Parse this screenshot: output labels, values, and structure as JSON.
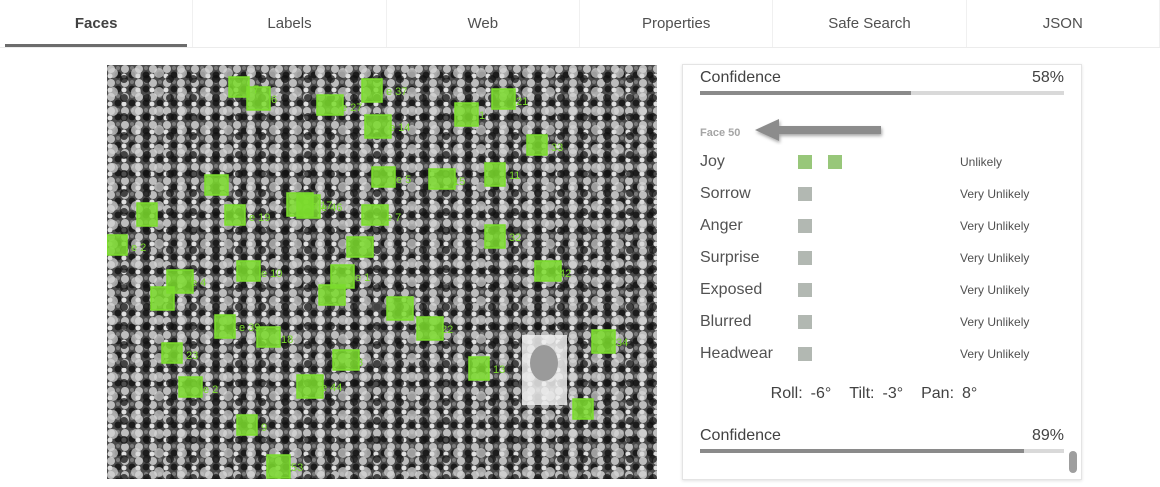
{
  "tabs": [
    {
      "label": "Faces",
      "active": true
    },
    {
      "label": "Labels",
      "active": false
    },
    {
      "label": "Web",
      "active": false
    },
    {
      "label": "Properties",
      "active": false
    },
    {
      "label": "Safe Search",
      "active": false
    },
    {
      "label": "JSON",
      "active": false
    }
  ],
  "image": {
    "face_labels": [
      "7",
      "6",
      "e 27",
      "e 37",
      "21",
      "e 14",
      "33",
      "1",
      "15",
      "11",
      "e 5",
      "e 17",
      "e 19",
      "e 46",
      "e 7",
      "32",
      "e 10",
      "e 4",
      "e 2",
      "e 1",
      "42",
      "e 39",
      "18",
      "22",
      "23",
      "34",
      "3",
      "13",
      "e 2",
      "e 44",
      "9",
      "53"
    ]
  },
  "panel": {
    "top_confidence": {
      "label": "Confidence",
      "value": "58%",
      "fraction": 0.58
    },
    "face_title": "Face 50",
    "attributes": [
      {
        "name": "Joy",
        "level": 2,
        "value": "Unlikely"
      },
      {
        "name": "Sorrow",
        "level": 1,
        "value": "Very Unlikely"
      },
      {
        "name": "Anger",
        "level": 1,
        "value": "Very Unlikely"
      },
      {
        "name": "Surprise",
        "level": 1,
        "value": "Very Unlikely"
      },
      {
        "name": "Exposed",
        "level": 1,
        "value": "Very Unlikely"
      },
      {
        "name": "Blurred",
        "level": 1,
        "value": "Very Unlikely"
      },
      {
        "name": "Headwear",
        "level": 1,
        "value": "Very Unlikely"
      }
    ],
    "angles": {
      "roll_label": "Roll:",
      "roll_value": "-6°",
      "tilt_label": "Tilt:",
      "tilt_value": "-3°",
      "pan_label": "Pan:",
      "pan_value": "8°"
    },
    "bottom_confidence": {
      "label": "Confidence",
      "value": "89%",
      "fraction": 0.89
    }
  },
  "colors": {
    "face_box": "#7bdc2d",
    "bar_fill": "#8a8a8a",
    "box_on": "#98c77a",
    "box_off": "#b2b8b2"
  }
}
